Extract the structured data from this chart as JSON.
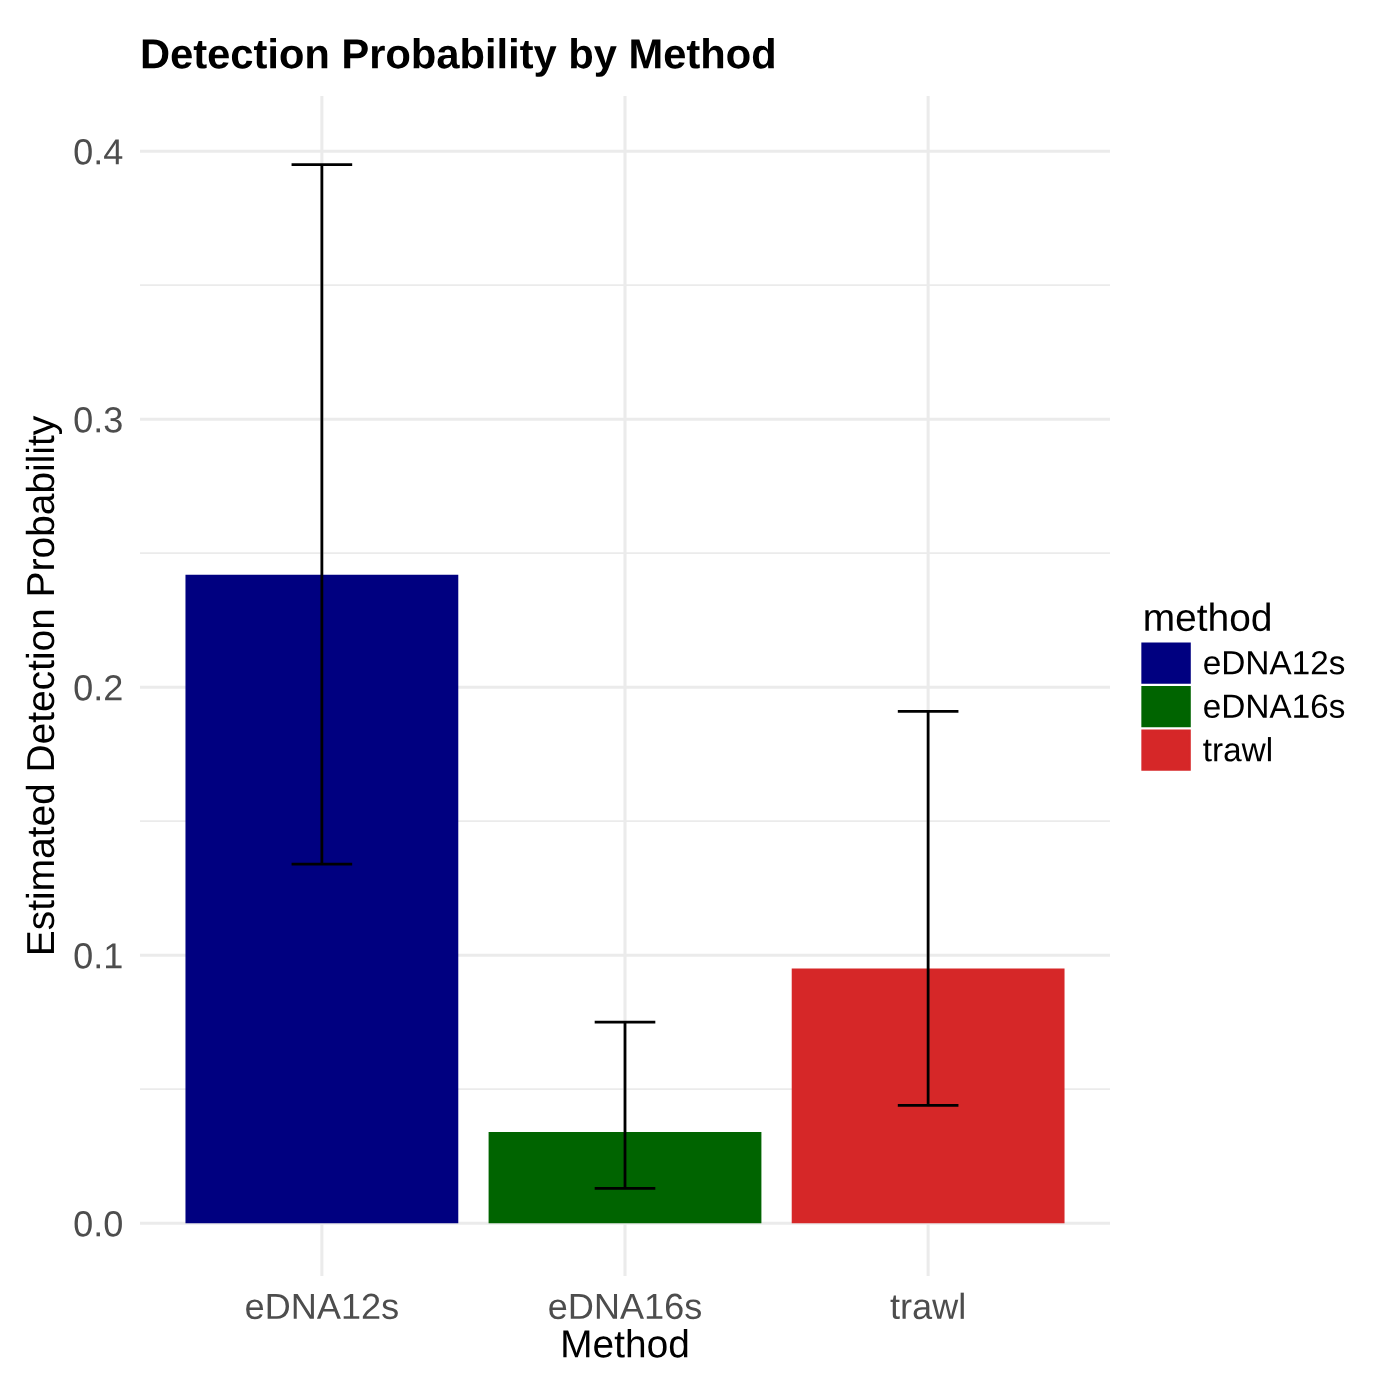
{
  "chart_data": {
    "type": "bar",
    "title": "Detection Probability by Method",
    "xlabel": "Method",
    "ylabel": "Estimated Detection Probability",
    "legend_title": "method",
    "categories": [
      "eDNA12s",
      "eDNA16s",
      "trawl"
    ],
    "series": [
      {
        "name": "eDNA12s",
        "color": "#000080",
        "values": [
          0.242,
          null,
          null
        ],
        "errors": [
          [
            0.134,
            0.395
          ],
          null,
          null
        ]
      },
      {
        "name": "eDNA16s",
        "color": "#006400",
        "values": [
          null,
          0.034,
          null
        ],
        "errors": [
          null,
          [
            0.013,
            0.075
          ],
          null
        ]
      },
      {
        "name": "trawl",
        "color": "#d62728",
        "values": [
          null,
          null,
          0.095
        ],
        "errors": [
          null,
          null,
          [
            0.044,
            0.191
          ]
        ]
      }
    ],
    "ylim": [
      -0.0197,
      0.4206
    ],
    "yticks": [
      {
        "value": 0,
        "label": "0.0"
      },
      0.1,
      0.2,
      0.3,
      0.4
    ],
    "grid": true,
    "legend": "right"
  }
}
